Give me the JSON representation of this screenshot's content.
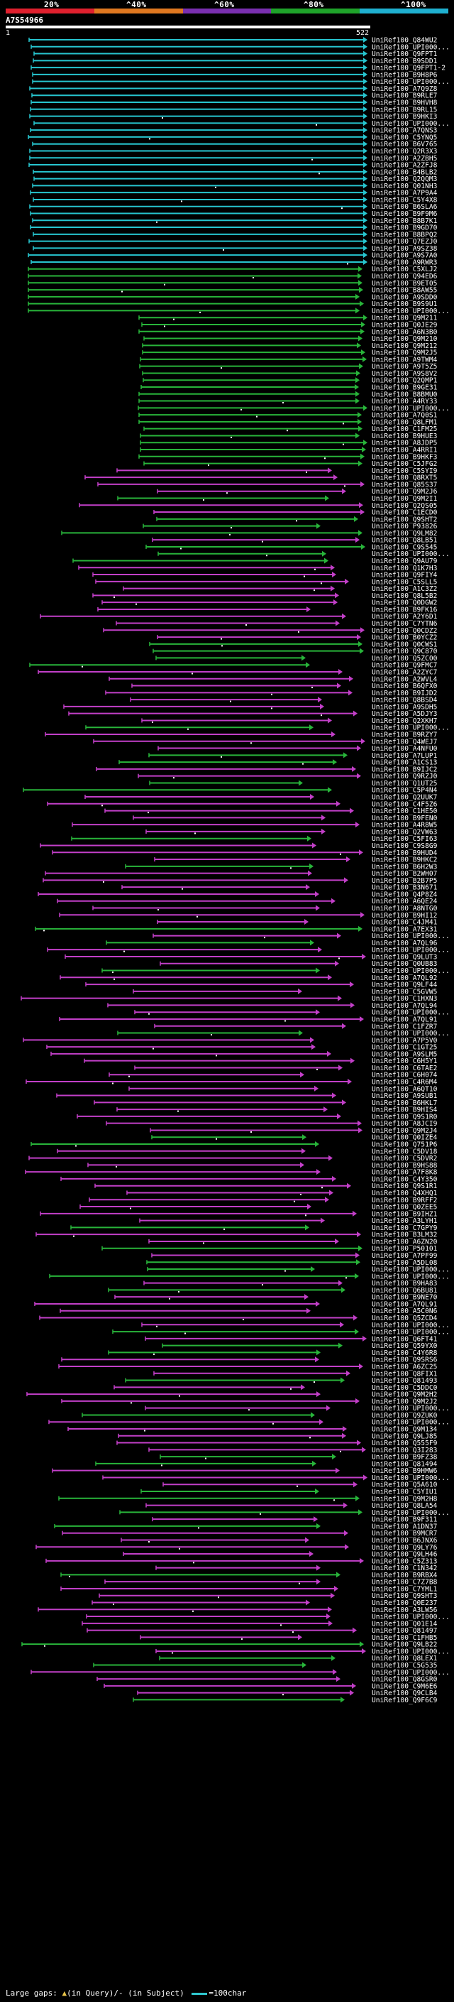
{
  "query": {
    "id": "A7S54966",
    "start": "1",
    "end": "522"
  },
  "ruler": {
    "labels": [
      "20%",
      "^40%",
      "^60%",
      "^80%",
      "^100%"
    ],
    "colors": [
      "#e0202e",
      "#e07820",
      "#7a2fb0",
      "#1fa32a",
      "#1fb0d0"
    ]
  },
  "legend": {
    "large_gaps": "Large gaps:",
    "in_query": "(in Query)/-",
    "in_subject": "(in Subject)",
    "scale": "=100char"
  },
  "hits": [
    "UniRef100_Q84WU2",
    "UniRef100_UPI000...",
    "UniRef100_Q9FPT1",
    "UniRef100_B9SDD1",
    "UniRef100_Q9FPT1-2",
    "UniRef100_B9H8P6",
    "UniRef100_UPI000...",
    "UniRef100_A7Q9Z8",
    "UniRef100_B9RLE7",
    "UniRef100_B9HVH8",
    "UniRef100_B9RL15",
    "UniRef100_B9HKI3",
    "UniRef100_UPI000...",
    "UniRef100_A7QNS3",
    "UniRef100_C5YNQ5",
    "UniRef100_B6V765",
    "UniRef100_Q2R3X3",
    "UniRef100_A2ZBH5",
    "UniRef100_A2ZFJ8",
    "UniRef100_B4BLB2",
    "UniRef100_Q2QQM3",
    "UniRef100_Q01NH3",
    "UniRef100_A7P9A4",
    "UniRef100_C5Y4X8",
    "UniRef100_B6SLA6",
    "UniRef100_B9F9M6",
    "UniRef100_B8B7K1",
    "UniRef100_B9GD70",
    "UniRef100_B8BPQ2",
    "UniRef100_Q7EZJ0",
    "UniRef100_A9SZ38",
    "UniRef100_A9S7A0",
    "UniRef100_A9RWR3",
    "UniRef100_C5XLJ2",
    "UniRef100_Q94ED6",
    "UniRef100_B9ET05",
    "UniRef100_B8AW55",
    "UniRef100_A9SDD0",
    "UniRef100_B9S9U1",
    "UniRef100_UPI000...",
    "UniRef100_Q9M211",
    "UniRef100_Q0JE29",
    "UniRef100_A6N3B0",
    "UniRef100_Q9M210",
    "UniRef100_Q9M212",
    "UniRef100_Q9M2J5",
    "UniRef100_A9TWM4",
    "UniRef100_A9T5Z5",
    "UniRef100_A9S8V2",
    "UniRef100_Q2QMP1",
    "UniRef100_B9GE31",
    "UniRef100_B8BMU0",
    "UniRef100_A4RY33",
    "UniRef100_UPI000...",
    "UniRef100_A7Q0S1",
    "UniRef100_Q8LFM1",
    "UniRef100_C1FM25",
    "UniRef100_B9HUE3",
    "UniRef100_A8JDP5",
    "UniRef100_A4RRI1",
    "UniRef100_B9HKF3",
    "UniRef100_C5JFG2",
    "UniRef100_C5SYI9",
    "UniRef100_Q8RXT5",
    "UniRef100_Q85S37",
    "UniRef100_Q9M2J6",
    "UniRef100_Q9M2I1",
    "UniRef100_Q2QS05",
    "UniRef100_C1ECD0",
    "UniRef100_Q9SHT2",
    "UniRef100_P93826",
    "UniRef100_Q9LM82",
    "UniRef100_Q8LB51",
    "UniRef100_C9S545",
    "UniRef100_UPI000...",
    "UniRef100_Q9AU79",
    "UniRef100_Q1K7H3",
    "UniRef100_Q9FIY4",
    "UniRef100_C5SLL5",
    "UniRef100_A1C3Z2",
    "UniRef100_Q8L5B2",
    "UniRef100_Q0DGW2",
    "UniRef100_B9FK16",
    "UniRef100_A2Y6D1",
    "UniRef100_C7YTN6",
    "UniRef100_Q0CDZ2",
    "UniRef100_B0YCZ2",
    "UniRef100_Q0CWS1",
    "UniRef100_Q9C870",
    "UniRef100_Q5ZC00",
    "UniRef100_Q9FMC7",
    "UniRef100_A2ZYC7",
    "UniRef100_A2WVL4",
    "UniRef100_B6QFX0",
    "UniRef100_B9IJD2",
    "UniRef100_Q8BSD4",
    "UniRef100_A9SDH5",
    "UniRef100_A5DJY3",
    "UniRef100_Q2XKH7",
    "UniRef100_UPI000...",
    "UniRef100_B9RZY7",
    "UniRef100_Q4WEJ7",
    "UniRef100_A4NFU0",
    "UniRef100_A7LUP1",
    "UniRef100_A1CS13",
    "UniRef100_B9IJC2",
    "UniRef100_Q9RZJ0",
    "UniRef100_Q1UT25",
    "UniRef100_C5P4N4",
    "UniRef100_Q2UUK7",
    "UniRef100_C4F5Z6",
    "UniRef100_C1HE50",
    "UniRef100_B9FEN0",
    "UniRef100_A4R8W5",
    "UniRef100_Q2VW63",
    "UniRef100_C5FI63",
    "UniRef100_C9S8G9",
    "UniRef100_B9HUD4",
    "UniRef100_B9HKC2",
    "UniRef100_B6H2W3",
    "UniRef100_B2WH07",
    "UniRef100_B2B7P5",
    "UniRef100_B3N671",
    "UniRef100_Q4P8Z4",
    "UniRef100_A6QE24",
    "UniRef100_A8NTG0",
    "UniRef100_B9HI12",
    "UniRef100_C4JM41",
    "UniRef100_A7EX31",
    "UniRef100_UPI000...",
    "UniRef100_A7QL96",
    "UniRef100_UPI000...",
    "UniRef100_Q9LUT3",
    "UniRef100_Q0UB83",
    "UniRef100_UPI000...",
    "UniRef100_A7QL92",
    "UniRef100_Q9LF44",
    "UniRef100_C5GVW5",
    "UniRef100_C1HXN3",
    "UniRef100_A7QL94",
    "UniRef100_UPI000...",
    "UniRef100_A7QL91",
    "UniRef100_C1FZR7",
    "UniRef100_UPI000...",
    "UniRef100_A7P5V0",
    "UniRef100_C1GT25",
    "UniRef100_A9SLM5",
    "UniRef100_C6H5Y1",
    "UniRef100_C6TAE2",
    "UniRef100_C6H074",
    "UniRef100_C4R6M4",
    "UniRef100_A6QT10",
    "UniRef100_A9SUB1",
    "UniRef100_B6HKL7",
    "UniRef100_B9HIS4",
    "UniRef100_Q9S1R0",
    "UniRef100_A8JCI9",
    "UniRef100_Q9M2J4",
    "UniRef100_Q0IZE4",
    "UniRef100_Q751P6",
    "UniRef100_C5DV18",
    "UniRef100_C5DVR2",
    "UniRef100_B9HS88",
    "UniRef100_A7F8K8",
    "UniRef100_C4Y350",
    "UniRef100_Q9S1R1",
    "UniRef100_Q4XHQ1",
    "UniRef100_B9RFF2",
    "UniRef100_Q0ZEE5",
    "UniRef100_B9IHZ1",
    "UniRef100_A3LYH1",
    "UniRef100_C7GPY9",
    "UniRef100_B3LM32",
    "UniRef100_A6ZN20",
    "UniRef100_P50101",
    "UniRef100_A7PF99",
    "UniRef100_A5DL08",
    "UniRef100_UPI000...",
    "UniRef100_UPI000...",
    "UniRef100_B9HA83",
    "UniRef100_Q6BU81",
    "UniRef100_B9NE70",
    "UniRef100_A7QL91",
    "UniRef100_A5C0N6",
    "UniRef100_Q5ZCD4",
    "UniRef100_UPI000...",
    "UniRef100_UPI000...",
    "UniRef100_Q6FT41",
    "UniRef100_Q59YX0",
    "UniRef100_C4Y6R8",
    "UniRef100_Q9SRS6",
    "UniRef100_A6ZC25",
    "UniRef100_Q8FIX1",
    "UniRef100_Q81493",
    "UniRef100_C5DDC0",
    "UniRef100_Q9M2H2",
    "UniRef100_Q9M2J2",
    "UniRef100_UPI000...",
    "UniRef100_Q9ZUK0",
    "UniRef100_UPI000...",
    "UniRef100_Q9M134",
    "UniRef100_Q9LJ85",
    "UniRef100_Q555F9",
    "UniRef100_Q3I283",
    "UniRef100_B9FZ38",
    "UniRef100_Q81494",
    "UniRef100_B9HMW6",
    "UniRef100_UPI000...",
    "UniRef100_Q5A610",
    "UniRef100_C5YIU1",
    "UniRef100_Q9M2H8",
    "UniRef100_Q8LA54",
    "UniRef100_UPI000...",
    "UniRef100_B9F311",
    "UniRef100_A1DN37",
    "UniRef100_B9MCR7",
    "UniRef100_B6JNX6",
    "UniRef100_Q9LY76",
    "UniRef100_Q9LH46",
    "UniRef100_C5Z313",
    "UniRef100_C1N342",
    "UniRef100_B9RBX4",
    "UniRef100_C7Z7B8",
    "UniRef100_C7YML1",
    "UniRef100_Q9SHT3",
    "UniRef100_Q0E237",
    "UniRef100_A3LW56",
    "UniRef100_UPI000...",
    "UniRef100_Q01E14",
    "UniRef100_Q81497",
    "UniRef100_C1FHB5",
    "UniRef100_Q9LB22",
    "UniRef100_UPI000...",
    "UniRef100_Q8LEX1",
    "UniRef100_C5G535",
    "UniRef100_UPI000...",
    "UniRef100_Q8GSR0",
    "UniRef100_C9M6E6",
    "UniRef100_Q9CLB4",
    "UniRef100_Q9F6C9"
  ]
}
